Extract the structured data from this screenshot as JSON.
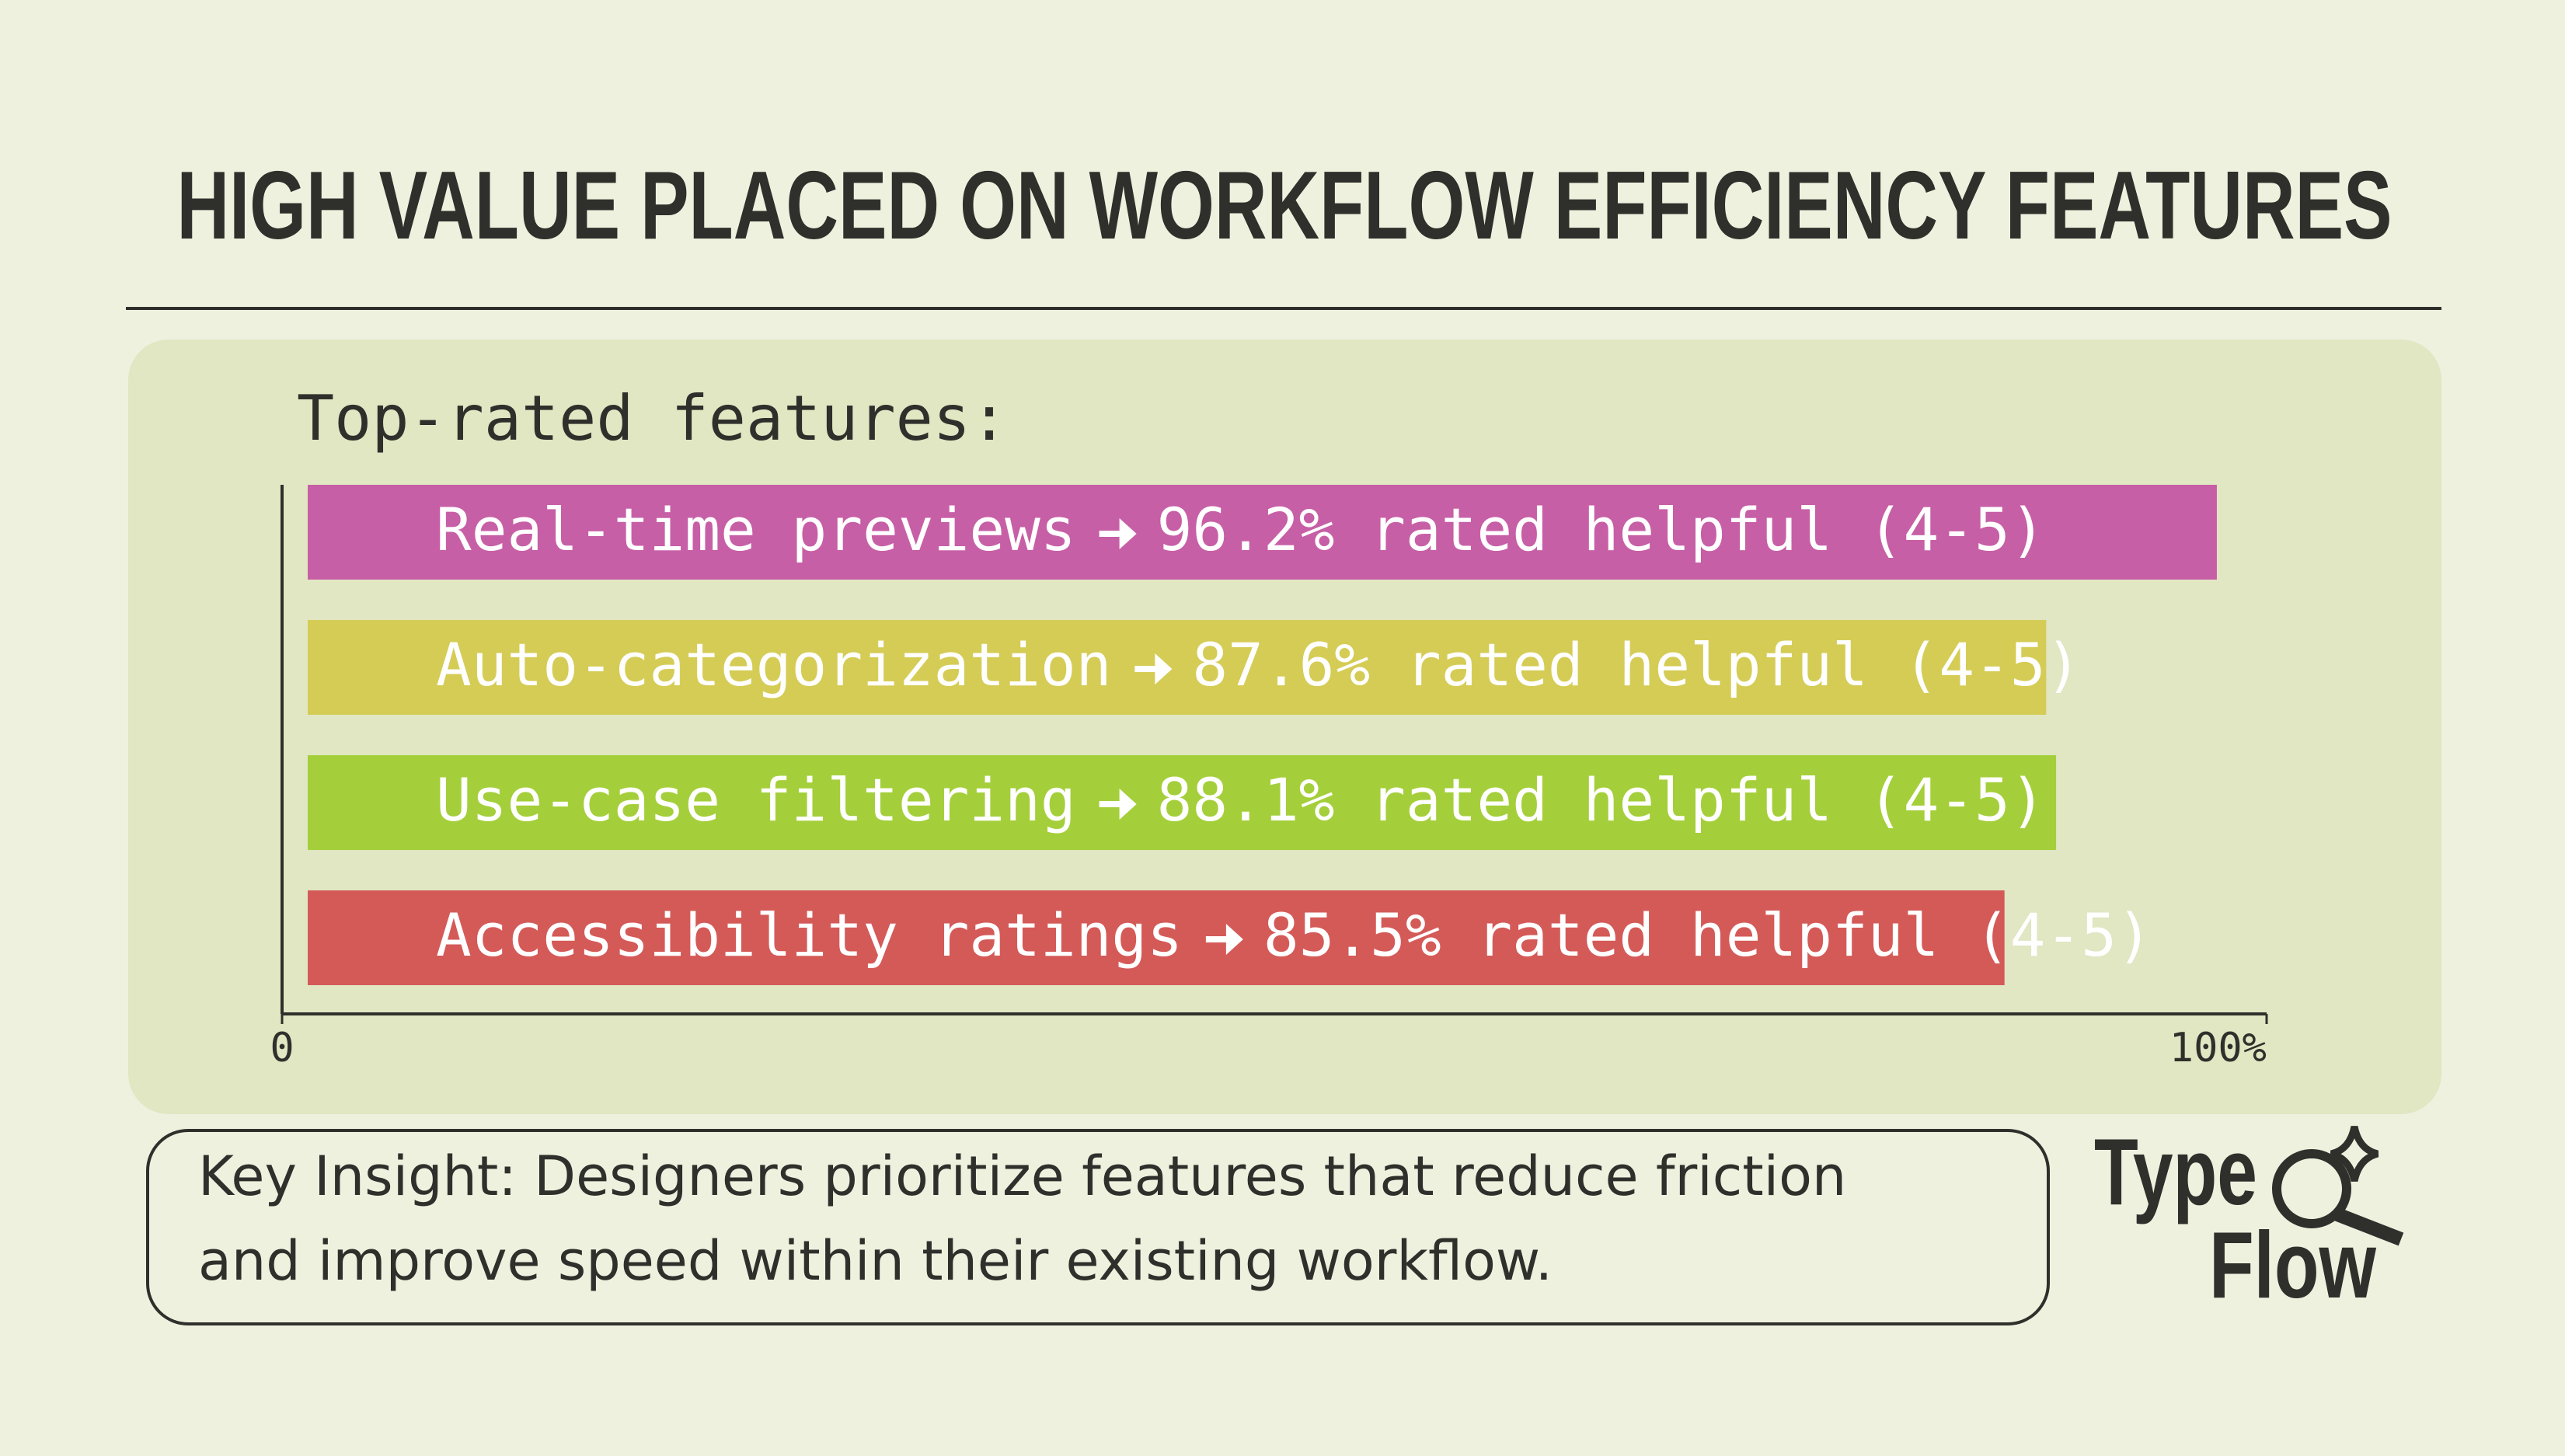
{
  "chart_data": {
    "type": "bar",
    "orientation": "horizontal",
    "title": "HIGH VALUE PLACED ON WORKFLOW EFFICIENCY FEATURES",
    "axis_title": "Top-rated features:",
    "categories": [
      "Real-time previews",
      "Auto-categorization",
      "Use-case filtering",
      "Accessibility ratings"
    ],
    "values": [
      96.2,
      87.6,
      88.1,
      85.5
    ],
    "value_labels": [
      "96.2% rated helpful (4-5)",
      "87.6% rated helpful (4-5)",
      "88.1% rated helpful (4-5)",
      "85.5% rated helpful (4-5)"
    ],
    "colors": [
      "#c75fa6",
      "#d5cc56",
      "#a4cf3a",
      "#d45a58"
    ],
    "xlim": [
      0,
      100
    ],
    "xticks": [
      0,
      {
        "value": 100,
        "label": "100%"
      }
    ],
    "insight": [
      "Key Insight: Designers prioritize features that reduce friction",
      "and improve speed within their existing workflow."
    ],
    "logo": [
      "Type",
      "Flow"
    ]
  }
}
